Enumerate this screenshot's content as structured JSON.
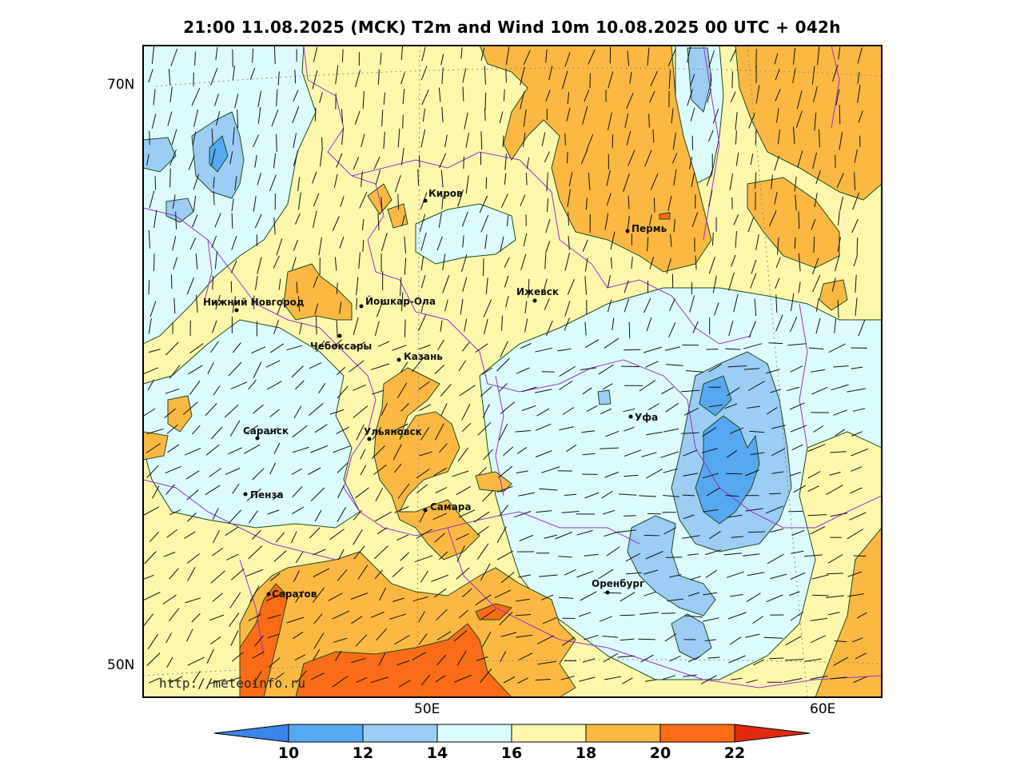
{
  "title": "21:00 11.08.2025 (MCK) T2m and Wind 10m 10.08.2025 00 UTC + 042h",
  "watermark": "http://meteoinfo.ru",
  "latitude_labels": [
    "70N",
    "50N"
  ],
  "longitude_labels": [
    "50E",
    "60E"
  ],
  "cities": [
    {
      "name": "Киров"
    },
    {
      "name": "Пермь"
    },
    {
      "name": "Ижевск"
    },
    {
      "name": "Нижний Новгород"
    },
    {
      "name": "Йошкар-Ола"
    },
    {
      "name": "Чебоксары"
    },
    {
      "name": "Казань"
    },
    {
      "name": "Уфа"
    },
    {
      "name": "Саранск"
    },
    {
      "name": "Ульяновск"
    },
    {
      "name": "Пенза"
    },
    {
      "name": "Самара"
    },
    {
      "name": "Оренбург"
    },
    {
      "name": "Саратов"
    }
  ],
  "colorbar": {
    "ticks": [
      "10",
      "12",
      "14",
      "16",
      "18",
      "20",
      "22"
    ],
    "colors": [
      "#3a86e8",
      "#56a8f0",
      "#9ccdf5",
      "#dcfbfd",
      "#fdf7ac",
      "#fbb943",
      "#fb6c16",
      "#e02a10"
    ]
  },
  "palette": {
    "cold_12": "#56a8f0",
    "cool_14": "#9ccdf5",
    "mild_16": "#dcfbfd",
    "warm_18": "#fdf7ac",
    "warmer_20": "#fbb943",
    "hot_22": "#fb6c16",
    "border": "#9932cc",
    "contour": "#1c4a1c"
  }
}
